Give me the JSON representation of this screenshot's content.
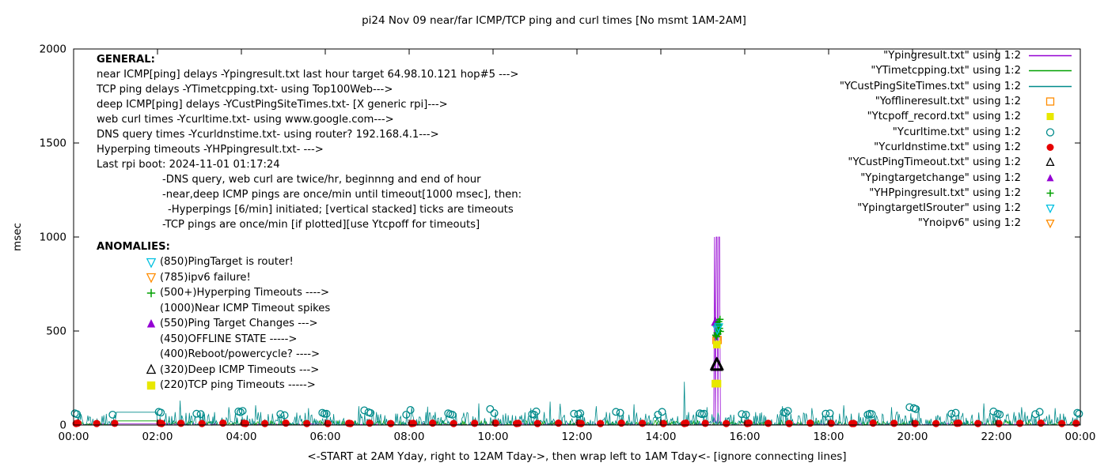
{
  "chart_data": {
    "type": "scatter",
    "title": "pi24 Nov 09  near/far ICMP/TCP ping and curl times [No msmt 1AM-2AM]",
    "xlabel": "<-START at 2AM Yday, right to 12AM Tday->, then wrap left to 1AM Tday<- [ignore connecting lines]",
    "ylabel": "msec",
    "ylim": [
      0,
      2000
    ],
    "xlim_hours": [
      0,
      24
    ],
    "yticks": [
      0,
      500,
      1000,
      1500,
      2000
    ],
    "xticks": [
      {
        "h": 0,
        "label": "00:00"
      },
      {
        "h": 2,
        "label": "02:00"
      },
      {
        "h": 4,
        "label": "04:00"
      },
      {
        "h": 6,
        "label": "06:00"
      },
      {
        "h": 8,
        "label": "08:00"
      },
      {
        "h": 10,
        "label": "10:00"
      },
      {
        "h": 12,
        "label": "12:00"
      },
      {
        "h": 14,
        "label": "14:00"
      },
      {
        "h": 16,
        "label": "16:00"
      },
      {
        "h": 18,
        "label": "18:00"
      },
      {
        "h": 20,
        "label": "20:00"
      },
      {
        "h": 22,
        "label": "22:00"
      },
      {
        "h": 24,
        "label": "00:00"
      }
    ],
    "grid": false,
    "legend_position": "top-right",
    "no_measurement_window": "01:00-02:00",
    "series": [
      {
        "name": "Ypingresult",
        "type": "line",
        "color": "#9400d3",
        "desc": "near ICMP ping delays, ~2-10 msec baseline; timeout spikes to 1000 msec at ~15:17-15:24",
        "noise": {
          "seed": 7,
          "pow": 3,
          "max": 10
        },
        "gap_y": 6,
        "spikes_x": [
          15.28,
          15.31,
          15.34,
          15.37,
          15.4
        ],
        "spike_y": 1000
      },
      {
        "name": "YTimetcpping",
        "type": "line",
        "color": "#00a000",
        "desc": "TCP ping delays, ~2-25 msec baseline",
        "noise": {
          "seed": 13,
          "pow": 3,
          "max": 26
        },
        "gap_y": 22
      },
      {
        "name": "YCustPingSiteTimes",
        "type": "line",
        "color": "#008b8b",
        "desc": "deep ICMP ping delays, 0-80 msec jitter with occasional spikes; 230 msec spike at ~14:33",
        "noise": {
          "seed": 29,
          "pow": 2.6,
          "max": 70,
          "spike_p": 0.02
        },
        "gap_y": 68,
        "spikes": [
          [
            2.55,
            130
          ],
          [
            3.7,
            95
          ],
          [
            4.35,
            105
          ],
          [
            5.6,
            90
          ],
          [
            6.8,
            100
          ],
          [
            8.05,
            95
          ],
          [
            9.65,
            115
          ],
          [
            10.9,
            90
          ],
          [
            12.45,
            100
          ],
          [
            13.35,
            110
          ],
          [
            14.55,
            230
          ],
          [
            15.1,
            95
          ],
          [
            16.9,
            100
          ],
          [
            17.6,
            90
          ],
          [
            18.35,
            105
          ],
          [
            19.5,
            95
          ],
          [
            20.15,
            100
          ],
          [
            21.7,
            115
          ],
          [
            22.6,
            95
          ],
          [
            23.4,
            90
          ]
        ]
      },
      {
        "name": "Ycurltime",
        "type": "points",
        "marker": "circle-open",
        "color": "#008b8b",
        "size": 4.3,
        "desc": "web curl times twice per hour (begin/end of hour), ~50-95 msec",
        "points": [
          [
            0.03,
            62
          ],
          [
            0.08,
            58
          ],
          [
            0.93,
            55
          ],
          [
            2.03,
            70
          ],
          [
            2.08,
            66
          ],
          [
            2.93,
            60
          ],
          [
            3.03,
            58
          ],
          [
            3.93,
            72
          ],
          [
            3.98,
            68
          ],
          [
            4.03,
            75
          ],
          [
            4.93,
            58
          ],
          [
            5.03,
            52
          ],
          [
            5.93,
            65
          ],
          [
            5.98,
            60
          ],
          [
            6.03,
            60
          ],
          [
            6.93,
            78
          ],
          [
            7.03,
            68
          ],
          [
            7.08,
            64
          ],
          [
            7.93,
            55
          ],
          [
            8.03,
            80
          ],
          [
            8.93,
            62
          ],
          [
            8.98,
            58
          ],
          [
            9.03,
            55
          ],
          [
            9.93,
            85
          ],
          [
            10.03,
            63
          ],
          [
            10.93,
            58
          ],
          [
            10.98,
            55
          ],
          [
            11.03,
            72
          ],
          [
            11.93,
            60
          ],
          [
            12.03,
            58
          ],
          [
            12.08,
            62
          ],
          [
            12.93,
            70
          ],
          [
            13.03,
            65
          ],
          [
            13.93,
            55
          ],
          [
            14.03,
            70
          ],
          [
            14.93,
            62
          ],
          [
            14.98,
            58
          ],
          [
            15.03,
            60
          ],
          [
            15.93,
            58
          ],
          [
            16.03,
            55
          ],
          [
            16.93,
            68
          ],
          [
            16.98,
            64
          ],
          [
            17.03,
            75
          ],
          [
            17.93,
            60
          ],
          [
            18.03,
            62
          ],
          [
            18.93,
            55
          ],
          [
            18.98,
            60
          ],
          [
            19.03,
            58
          ],
          [
            19.93,
            95
          ],
          [
            20.03,
            90
          ],
          [
            20.08,
            85
          ],
          [
            20.93,
            60
          ],
          [
            21.03,
            65
          ],
          [
            21.93,
            72
          ],
          [
            22.03,
            60
          ],
          [
            22.08,
            56
          ],
          [
            22.93,
            58
          ],
          [
            23.03,
            70
          ],
          [
            23.93,
            65
          ],
          [
            23.97,
            60
          ]
        ]
      },
      {
        "name": "Ycurldnstime",
        "type": "points",
        "marker": "circle-filled",
        "color": "#e60000",
        "size": 4.6,
        "desc": "DNS query times twice per hour, ~8-10 msec",
        "points": [
          [
            0.06,
            8
          ],
          [
            0.1,
            10
          ],
          [
            0.55,
            8
          ],
          [
            0.98,
            9
          ],
          [
            2.06,
            10
          ],
          [
            2.1,
            8
          ],
          [
            2.56,
            9
          ],
          [
            3.06,
            8
          ],
          [
            3.56,
            10
          ],
          [
            4.06,
            9
          ],
          [
            4.1,
            8
          ],
          [
            4.56,
            8
          ],
          [
            5.06,
            10
          ],
          [
            5.56,
            8
          ],
          [
            6.06,
            8
          ],
          [
            6.56,
            9
          ],
          [
            6.6,
            8
          ],
          [
            7.06,
            10
          ],
          [
            7.56,
            8
          ],
          [
            8.06,
            8
          ],
          [
            8.1,
            9
          ],
          [
            8.56,
            10
          ],
          [
            9.06,
            8
          ],
          [
            9.56,
            9
          ],
          [
            10.06,
            10
          ],
          [
            10.56,
            8
          ],
          [
            10.6,
            9
          ],
          [
            11.06,
            8
          ],
          [
            11.56,
            10
          ],
          [
            12.06,
            9
          ],
          [
            12.1,
            8
          ],
          [
            12.56,
            8
          ],
          [
            13.06,
            10
          ],
          [
            13.56,
            9
          ],
          [
            14.06,
            8
          ],
          [
            14.56,
            8
          ],
          [
            14.6,
            10
          ],
          [
            15.06,
            9
          ],
          [
            15.56,
            8
          ],
          [
            16.06,
            8
          ],
          [
            16.1,
            10
          ],
          [
            16.56,
            9
          ],
          [
            17.06,
            8
          ],
          [
            17.56,
            10
          ],
          [
            18.06,
            9
          ],
          [
            18.56,
            8
          ],
          [
            18.6,
            8
          ],
          [
            19.06,
            10
          ],
          [
            19.56,
            9
          ],
          [
            20.06,
            8
          ],
          [
            20.56,
            8
          ],
          [
            21.06,
            9
          ],
          [
            21.1,
            10
          ],
          [
            21.56,
            8
          ],
          [
            22.06,
            8
          ],
          [
            22.56,
            9
          ],
          [
            23.06,
            10
          ],
          [
            23.56,
            8
          ],
          [
            23.9,
            9
          ]
        ]
      },
      {
        "name": "Yofflineresult",
        "type": "points",
        "marker": "square-open",
        "color": "#ff8c00",
        "size": 4.5,
        "desc": "OFFLINE STATE markers (level 450) during ~15:20 event",
        "points": [
          [
            15.325,
            452
          ],
          [
            15.355,
            452
          ]
        ]
      },
      {
        "name": "Ytcpoff_record",
        "type": "points",
        "marker": "square-filled",
        "color": "#e8e800",
        "size": 4.8,
        "desc": "TCP ping timeout markers (level 220) during ~15:20 event",
        "points": [
          [
            15.3,
            220
          ],
          [
            15.325,
            220
          ],
          [
            15.35,
            220
          ],
          [
            15.335,
            428
          ]
        ]
      },
      {
        "name": "YCustPingTimeout",
        "type": "points",
        "marker": "triangle-open",
        "color": "#000000",
        "size": 7,
        "desc": "deep ICMP timeout markers (level 320) during ~15:20 event",
        "points": [
          [
            15.315,
            320
          ],
          [
            15.325,
            320
          ],
          [
            15.335,
            320
          ],
          [
            15.345,
            320
          ],
          [
            15.355,
            320
          ],
          [
            15.335,
            316
          ],
          [
            15.335,
            324
          ]
        ]
      },
      {
        "name": "Ypingtargetchange",
        "type": "points",
        "marker": "triangle-filled",
        "color": "#9400d3",
        "size": 5.5,
        "desc": "ping target change marker (level 550) during ~15:20 event",
        "points": [
          [
            15.3,
            548
          ]
        ]
      },
      {
        "name": "YHPpingresult",
        "type": "points",
        "marker": "plus",
        "color": "#00a000",
        "size": 4.5,
        "desc": "hyperping timeout ticks vertically stacked ~470-565 during ~15:20 event",
        "points": [
          [
            15.31,
            478
          ],
          [
            15.34,
            490
          ],
          [
            15.37,
            502
          ],
          [
            15.4,
            514
          ],
          [
            15.32,
            526
          ],
          [
            15.35,
            538
          ],
          [
            15.38,
            550
          ],
          [
            15.41,
            562
          ],
          [
            15.33,
            470
          ],
          [
            15.36,
            484
          ],
          [
            15.39,
            532
          ],
          [
            15.42,
            498
          ]
        ]
      },
      {
        "name": "YpingtargetISrouter",
        "type": "points",
        "marker": "tri-down-open",
        "color": "#00c0e0",
        "size": 5,
        "desc": "ping-target-is-router markers during ~15:20 event",
        "points": [
          [
            15.345,
            508
          ],
          [
            15.375,
            520
          ]
        ]
      },
      {
        "name": "Ynoipv6",
        "type": "points",
        "marker": "tri-down-open",
        "color": "#ff8c00",
        "size": 5,
        "desc": "ipv6 failure marker (none plotted this day)",
        "points": []
      }
    ]
  },
  "legend": [
    {
      "label": "\"Ypingresult.txt\" using 1:2",
      "glyph": "line",
      "color": "#9400d3"
    },
    {
      "label": "\"YTimetcpping.txt\" using 1:2",
      "glyph": "line",
      "color": "#00a000"
    },
    {
      "label": "\"YCustPingSiteTimes.txt\" using 1:2",
      "glyph": "line",
      "color": "#008b8b"
    },
    {
      "label": "\"Yofflineresult.txt\" using 1:2",
      "glyph": "square-open",
      "color": "#ff8c00"
    },
    {
      "label": "\"Ytcpoff_record.txt\" using 1:2",
      "glyph": "square-filled",
      "color": "#e8e800"
    },
    {
      "label": "\"Ycurltime.txt\" using 1:2",
      "glyph": "circle-open",
      "color": "#008b8b"
    },
    {
      "label": "\"Ycurldnstime.txt\" using 1:2",
      "glyph": "circle-filled",
      "color": "#e60000"
    },
    {
      "label": "\"YCustPingTimeout.txt\" using 1:2",
      "glyph": "triangle-open",
      "color": "#000000"
    },
    {
      "label": "\"Ypingtargetchange\" using 1:2",
      "glyph": "triangle-filled",
      "color": "#9400d3"
    },
    {
      "label": "\"YHPpingresult.txt\" using 1:2",
      "glyph": "plus",
      "color": "#00a000"
    },
    {
      "label": "\"YpingtargetISrouter\" using 1:2",
      "glyph": "tri-down-open",
      "color": "#00c0e0"
    },
    {
      "label": "\"Ynoipv6\" using 1:2",
      "glyph": "tri-down-open",
      "color": "#ff8c00"
    }
  ],
  "annotations": {
    "general": {
      "heading": "GENERAL:",
      "lines": [
        {
          "indent": 0,
          "text": "near ICMP[ping] delays -Ypingresult.txt last hour target 64.98.10.121 hop#5 --->"
        },
        {
          "indent": 0,
          "text": "TCP ping delays -YTimetcpping.txt- using Top100Web--->"
        },
        {
          "indent": 0,
          "text": "deep ICMP[ping] delays -YCustPingSiteTimes.txt- [X generic rpi]--->"
        },
        {
          "indent": 0,
          "text": "web curl times -Ycurltime.txt- using www.google.com--->"
        },
        {
          "indent": 0,
          "text": "DNS query times -Ycurldnstime.txt- using router? 192.168.4.1--->"
        },
        {
          "indent": 0,
          "text": "Hyperping timeouts -YHPpingresult.txt- --->"
        },
        {
          "indent": 0,
          "text": "Last rpi boot: 2024-11-01 01:17:24"
        },
        {
          "indent": 83,
          "text": "-DNS query, web curl are twice/hr, beginnng and end of hour"
        },
        {
          "indent": 83,
          "text": "-near,deep ICMP pings are once/min until timeout[1000 msec], then:"
        },
        {
          "indent": 90,
          "text": "-Hyperpings [6/min] initiated; [vertical stacked] ticks are timeouts"
        },
        {
          "indent": 83,
          "text": "-TCP pings are once/min [if plotted][use Ytcpoff for timeouts]"
        }
      ]
    },
    "anomalies": {
      "heading": "ANOMALIES:",
      "items": [
        {
          "marker": "tri-down-open",
          "color": "#00c0e0",
          "text": "(850)PingTarget is router!"
        },
        {
          "marker": "tri-down-open",
          "color": "#ff8c00",
          "text": "(785)ipv6 failure!"
        },
        {
          "marker": "plus",
          "color": "#00a000",
          "text": "(500+)Hyperping Timeouts ---->"
        },
        {
          "marker": null,
          "color": null,
          "text": "(1000)Near ICMP Timeout spikes"
        },
        {
          "marker": "triangle-filled",
          "color": "#9400d3",
          "text": "(550)Ping Target Changes --->"
        },
        {
          "marker": null,
          "color": null,
          "text": "(450)OFFLINE STATE ----->"
        },
        {
          "marker": null,
          "color": null,
          "text": "(400)Reboot/powercycle? ---->"
        },
        {
          "marker": "triangle-open",
          "color": "#000000",
          "text": "(320)Deep ICMP Timeouts --->"
        },
        {
          "marker": "square-filled",
          "color": "#e8e800",
          "text": "(220)TCP ping Timeouts ----->"
        }
      ]
    }
  }
}
